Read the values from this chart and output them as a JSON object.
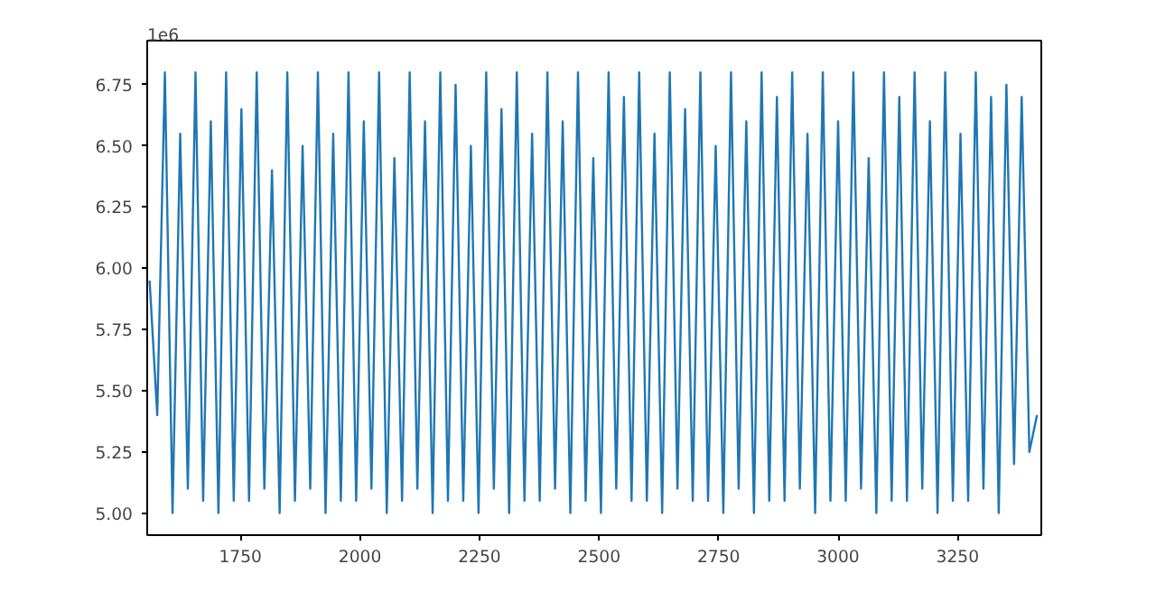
{
  "chart_data": {
    "type": "line",
    "x": [
      1560,
      1576,
      1592,
      1608,
      1624,
      1640,
      1656,
      1672,
      1688,
      1704,
      1720,
      1736,
      1752,
      1768,
      1784,
      1800,
      1816,
      1832,
      1848,
      1864,
      1880,
      1896,
      1912,
      1928,
      1944,
      1960,
      1976,
      1992,
      2008,
      2024,
      2040,
      2056,
      2072,
      2088,
      2104,
      2120,
      2136,
      2152,
      2168,
      2184,
      2200,
      2216,
      2232,
      2248,
      2264,
      2280,
      2296,
      2312,
      2328,
      2344,
      2360,
      2376,
      2392,
      2408,
      2424,
      2440,
      2456,
      2472,
      2488,
      2504,
      2520,
      2536,
      2552,
      2568,
      2584,
      2600,
      2616,
      2632,
      2648,
      2664,
      2680,
      2696,
      2712,
      2728,
      2744,
      2760,
      2776,
      2792,
      2808,
      2824,
      2840,
      2856,
      2872,
      2888,
      2904,
      2920,
      2936,
      2952,
      2968,
      2984,
      3000,
      3016,
      3032,
      3048,
      3064,
      3080,
      3096,
      3112,
      3128,
      3144,
      3160,
      3176,
      3192,
      3208,
      3224,
      3240,
      3256,
      3272,
      3288,
      3304,
      3320,
      3336,
      3352,
      3368,
      3384,
      3400,
      3416
    ],
    "series": [
      {
        "color": "#1f77b4",
        "values": [
          5.95,
          5.4,
          6.8,
          5.0,
          6.55,
          5.1,
          6.8,
          5.05,
          6.6,
          5.0,
          6.8,
          5.05,
          6.65,
          5.05,
          6.8,
          5.1,
          6.4,
          5.0,
          6.8,
          5.05,
          6.5,
          5.1,
          6.8,
          5.0,
          6.55,
          5.05,
          6.8,
          5.05,
          6.6,
          5.1,
          6.8,
          5.0,
          6.45,
          5.05,
          6.8,
          5.1,
          6.6,
          5.0,
          6.8,
          5.05,
          6.75,
          5.05,
          6.5,
          5.0,
          6.8,
          5.1,
          6.65,
          5.0,
          6.8,
          5.05,
          6.55,
          5.05,
          6.8,
          5.1,
          6.6,
          5.0,
          6.8,
          5.05,
          6.45,
          5.0,
          6.8,
          5.1,
          6.7,
          5.05,
          6.8,
          5.05,
          6.55,
          5.0,
          6.8,
          5.1,
          6.65,
          5.05,
          6.8,
          5.05,
          6.5,
          5.0,
          6.8,
          5.1,
          6.6,
          5.0,
          6.8,
          5.05,
          6.7,
          5.05,
          6.8,
          5.1,
          6.55,
          5.0,
          6.8,
          5.05,
          6.6,
          5.05,
          6.8,
          5.1,
          6.45,
          5.0,
          6.8,
          5.05,
          6.7,
          5.05,
          6.8,
          5.1,
          6.6,
          5.0,
          6.8,
          5.05,
          6.55,
          5.05,
          6.8,
          5.1,
          6.7,
          5.0,
          6.75,
          5.2,
          6.7,
          5.25,
          5.4
        ]
      }
    ],
    "xlim": [
      1555,
      3425
    ],
    "xticks": [
      1750,
      2000,
      2250,
      2500,
      2750,
      3000,
      3250
    ],
    "ylim": [
      4.91,
      6.93
    ],
    "yticks": [
      {
        "value": 5,
        "label": "5.00"
      },
      {
        "value": 5.25,
        "label": "5.25"
      },
      {
        "value": 5.5,
        "label": "5.50"
      },
      {
        "value": 5.75,
        "label": "5.75"
      },
      {
        "value": 6,
        "label": "6.00"
      },
      {
        "value": 6.25,
        "label": "6.25"
      },
      {
        "value": 6.5,
        "label": "6.50"
      },
      {
        "value": 6.75,
        "label": "6.75"
      }
    ],
    "annotations": [
      "1e6"
    ],
    "grid": false,
    "marker": "none",
    "line_style": "solid"
  }
}
